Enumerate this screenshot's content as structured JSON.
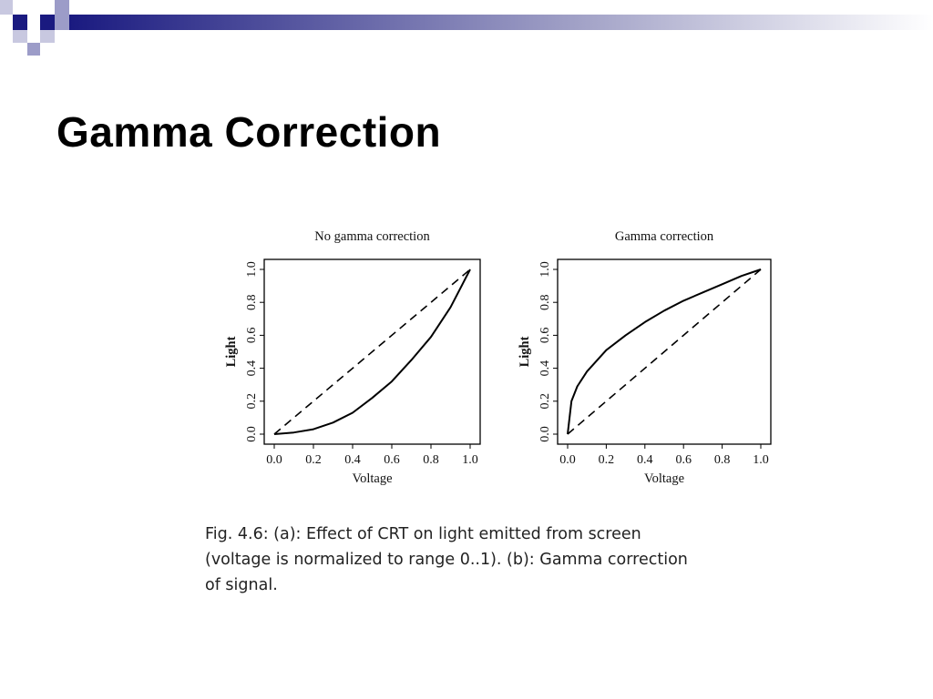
{
  "slide": {
    "title": "Gamma Correction",
    "caption_lines": [
      "Fig. 4.6: (a): Effect of CRT on light emitted from screen",
      "(voltage is normalized to range 0..1). (b): Gamma correction",
      "of signal."
    ],
    "colors": {
      "accent": "#1a1a80",
      "accent_light": "#9c9cc8",
      "curve": "#000000"
    }
  },
  "chart_data": [
    {
      "type": "line",
      "title": "No gamma correction",
      "xlabel": "Voltage",
      "ylabel": "Light",
      "xlim": [
        0,
        1
      ],
      "ylim": [
        0,
        1
      ],
      "x_ticks": [
        "0.0",
        "0.2",
        "0.4",
        "0.6",
        "0.8",
        "1.0"
      ],
      "y_ticks": [
        "0.0",
        "0.2",
        "0.4",
        "0.6",
        "0.8",
        "1.0"
      ],
      "grid": false,
      "series": [
        {
          "style": "solid",
          "x": [
            0,
            0.1,
            0.2,
            0.3,
            0.4,
            0.5,
            0.6,
            0.7,
            0.8,
            0.9,
            1.0
          ],
          "y": [
            0,
            0.01,
            0.03,
            0.07,
            0.13,
            0.22,
            0.32,
            0.45,
            0.59,
            0.77,
            1.0
          ]
        },
        {
          "style": "dashed",
          "x": [
            0,
            1
          ],
          "y": [
            0,
            1
          ]
        }
      ]
    },
    {
      "type": "line",
      "title": "Gamma correction",
      "xlabel": "Voltage",
      "ylabel": "Light",
      "xlim": [
        0,
        1
      ],
      "ylim": [
        0,
        1
      ],
      "x_ticks": [
        "0.0",
        "0.2",
        "0.4",
        "0.6",
        "0.8",
        "1.0"
      ],
      "y_ticks": [
        "0.0",
        "0.2",
        "0.4",
        "0.6",
        "0.8",
        "1.0"
      ],
      "grid": false,
      "series": [
        {
          "style": "solid",
          "x": [
            0,
            0.02,
            0.05,
            0.1,
            0.2,
            0.3,
            0.4,
            0.5,
            0.6,
            0.7,
            0.8,
            0.9,
            1.0
          ],
          "y": [
            0,
            0.2,
            0.29,
            0.38,
            0.51,
            0.6,
            0.68,
            0.75,
            0.81,
            0.86,
            0.91,
            0.96,
            1.0
          ]
        },
        {
          "style": "dashed",
          "x": [
            0,
            1
          ],
          "y": [
            0,
            1
          ]
        }
      ]
    }
  ]
}
